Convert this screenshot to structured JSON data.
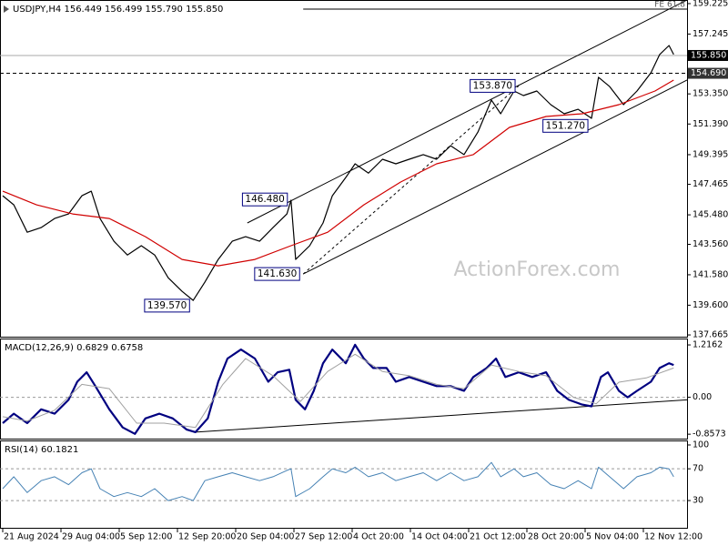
{
  "chart_data": [
    {
      "type": "line",
      "title": "USDJPY,H4 156.449 156.499 155.790 155.850",
      "watermark": "ActionForex.com",
      "xlim": [
        -0.047,
        11.75
      ],
      "ylim": [
        137.55,
        159.46
      ],
      "yticks": [
        159.225,
        157.245,
        {
          "value": 153.35,
          "label": "153.350"
        },
        {
          "value": 151.39,
          "label": "151.390"
        },
        149.395,
        147.465,
        {
          "value": 145.48,
          "label": "145.480"
        },
        {
          "value": 143.56,
          "label": "143.560"
        },
        {
          "value": 141.58,
          "label": "141.580"
        },
        {
          "value": 139.6,
          "label": "139.600"
        },
        137.665
      ],
      "levels": [
        {
          "value": 155.85,
          "label": "155.850",
          "color": "#000000",
          "style": "solid"
        },
        {
          "value": 154.69,
          "label": "154.690",
          "color": "#333333",
          "style": "dashed"
        }
      ],
      "x": [
        0,
        0.19,
        0.42,
        0.66,
        0.89,
        1.13,
        1.36,
        1.52,
        1.67,
        1.91,
        2.14,
        2.38,
        2.61,
        2.84,
        3.08,
        3.27,
        3.47,
        3.7,
        3.94,
        4.17,
        4.41,
        4.64,
        4.88,
        4.95,
        5.03,
        5.27,
        5.5,
        5.66,
        5.89,
        6.05,
        6.28,
        6.52,
        6.75,
        6.98,
        7.22,
        7.45,
        7.69,
        7.92,
        8.16,
        8.39,
        8.55,
        8.78,
        8.94,
        9.17,
        9.41,
        9.64,
        9.88,
        10.11,
        10.23,
        10.42,
        10.66,
        10.89,
        11.13,
        11.28,
        11.44,
        11.52
      ],
      "series": [
        {
          "color": "#000000",
          "values": [
            146.72,
            146.13,
            144.35,
            144.65,
            145.24,
            145.54,
            146.72,
            147.02,
            145.24,
            143.76,
            142.87,
            143.47,
            142.87,
            141.39,
            140.5,
            139.91,
            141.1,
            142.58,
            143.76,
            144.06,
            143.76,
            144.65,
            145.54,
            146.43,
            142.58,
            143.47,
            144.95,
            146.72,
            147.91,
            148.8,
            148.2,
            149.1,
            148.8,
            149.1,
            149.4,
            149.1,
            149.98,
            149.4,
            150.87,
            152.95,
            152.06,
            153.54,
            153.24,
            153.54,
            152.65,
            152.06,
            152.35,
            151.76,
            154.43,
            153.83,
            152.65,
            153.54,
            154.72,
            155.91,
            156.5,
            155.91
          ]
        },
        {
          "color": "#d00000",
          "x": [
            0,
            0.58,
            1.2,
            1.83,
            2.45,
            3.08,
            3.7,
            4.33,
            4.95,
            5.58,
            6.2,
            6.83,
            7.45,
            8.08,
            8.7,
            9.33,
            9.95,
            10.58,
            11.2,
            11.52
          ],
          "values": [
            147.02,
            146.13,
            145.54,
            145.24,
            144.06,
            142.58,
            142.16,
            142.58,
            143.47,
            144.35,
            146.13,
            147.61,
            148.8,
            149.4,
            151.17,
            151.88,
            152.06,
            152.65,
            153.54,
            154.25
          ]
        }
      ],
      "lines": [
        {
          "x": [
            4.2,
            11.75
          ],
          "values": [
            144.95,
            159.46
          ],
          "style": "solid"
        },
        {
          "x": [
            5.16,
            11.75
          ],
          "values": [
            141.63,
            154.25
          ],
          "style": "solid"
        },
        {
          "x": [
            5.16,
            8.86
          ],
          "values": [
            141.63,
            153.87
          ],
          "style": "dashed"
        },
        {
          "x": [
            5.16,
            11.75
          ],
          "values": [
            158.87,
            158.87
          ],
          "style": "solid",
          "label": "FE 61.8"
        }
      ],
      "annotations": [
        {
          "x": 3.27,
          "value": 139.57,
          "label": "139.570"
        },
        {
          "x": 5.16,
          "value": 141.63,
          "label": "141.630"
        },
        {
          "x": 4.95,
          "value": 146.48,
          "label": "146.480"
        },
        {
          "x": 8.86,
          "value": 153.87,
          "label": "153.870"
        },
        {
          "x": 10.11,
          "value": 151.27,
          "label": "151.270"
        }
      ]
    },
    {
      "type": "line",
      "title": "MACD(12,26,9) 0.6829 0.6758",
      "xlim": [
        -0.047,
        11.75
      ],
      "ylim": [
        -0.96,
        1.365
      ],
      "yticks": [
        1.2162,
        {
          "value": 0,
          "label": "0.00"
        },
        -0.8573
      ],
      "dashed_levels": [
        0
      ],
      "series": [
        {
          "color": "#000080",
          "width": 2.2,
          "x": [
            0,
            0.19,
            0.42,
            0.66,
            0.89,
            1.13,
            1.28,
            1.44,
            1.59,
            1.83,
            2.06,
            2.27,
            2.45,
            2.69,
            2.92,
            3.16,
            3.31,
            3.52,
            3.7,
            3.86,
            4.09,
            4.33,
            4.56,
            4.72,
            4.92,
            5.03,
            5.19,
            5.34,
            5.5,
            5.66,
            5.89,
            6.05,
            6.2,
            6.36,
            6.59,
            6.75,
            6.98,
            7.22,
            7.45,
            7.69,
            7.92,
            8.08,
            8.31,
            8.47,
            8.63,
            8.86,
            9.09,
            9.33,
            9.52,
            9.72,
            9.95,
            10.11,
            10.27,
            10.39,
            10.58,
            10.73,
            10.89,
            11.13,
            11.28,
            11.44,
            11.52
          ],
          "values": [
            -0.6,
            -0.38,
            -0.6,
            -0.28,
            -0.38,
            -0.06,
            0.36,
            0.58,
            0.26,
            -0.28,
            -0.7,
            -0.85,
            -0.49,
            -0.38,
            -0.49,
            -0.75,
            -0.81,
            -0.49,
            0.36,
            0.9,
            1.11,
            0.9,
            0.36,
            0.58,
            0.64,
            -0.06,
            -0.28,
            0.15,
            0.79,
            1.11,
            0.79,
            1.22,
            0.9,
            0.68,
            0.68,
            0.36,
            0.47,
            0.36,
            0.26,
            0.26,
            0.15,
            0.47,
            0.68,
            0.9,
            0.47,
            0.58,
            0.47,
            0.58,
            0.15,
            -0.06,
            -0.17,
            -0.21,
            0.47,
            0.58,
            0.15,
            0,
            0.15,
            0.36,
            0.68,
            0.79,
            0.75
          ]
        },
        {
          "color": "#a0a0a0",
          "width": 1,
          "x": [
            0,
            0.42,
            0.89,
            1.36,
            1.83,
            2.3,
            2.77,
            3.31,
            3.78,
            4.17,
            4.64,
            5.11,
            5.58,
            6.05,
            6.52,
            6.98,
            7.45,
            7.92,
            8.39,
            8.86,
            9.33,
            9.8,
            10.19,
            10.58,
            11.05,
            11.52
          ],
          "values": [
            -0.45,
            -0.55,
            -0.3,
            0.3,
            0.2,
            -0.6,
            -0.6,
            -0.7,
            0.3,
            0.9,
            0.5,
            -0.1,
            0.6,
            1.0,
            0.6,
            0.5,
            0.3,
            0.2,
            0.75,
            0.6,
            0.5,
            0.0,
            -0.15,
            0.35,
            0.45,
            0.68
          ]
        }
      ],
      "lines": [
        {
          "x": [
            3.31,
            11.75
          ],
          "values": [
            -0.81,
            -0.06
          ],
          "style": "solid"
        }
      ]
    },
    {
      "type": "line",
      "title": "RSI(14) 60.1821",
      "xlim": [
        -0.047,
        11.75
      ],
      "ylim": [
        -4.3,
        105.7
      ],
      "yticks": [
        100,
        70,
        30
      ],
      "dashed_levels": [
        70,
        30
      ],
      "xticks": [
        {
          "value": 0,
          "label": "21 Aug 2024"
        },
        {
          "value": 1,
          "label": "29 Aug 04:00"
        },
        {
          "value": 2,
          "label": "5 Sep 12:00"
        },
        {
          "value": 3,
          "label": "12 Sep 20:00"
        },
        {
          "value": 4,
          "label": "20 Sep 04:00"
        },
        {
          "value": 5,
          "label": "27 Sep 12:00"
        },
        {
          "value": 6,
          "label": "4 Oct 20:00"
        },
        {
          "value": 7,
          "label": "14 Oct 04:00"
        },
        {
          "value": 8,
          "label": "21 Oct 12:00"
        },
        {
          "value": 9,
          "label": "28 Oct 20:00"
        },
        {
          "value": 10,
          "label": "5 Nov 04:00"
        },
        {
          "value": 11,
          "label": "12 Nov 12:00"
        }
      ],
      "series": [
        {
          "color": "#4682b4",
          "width": 1,
          "x": [
            0,
            0.19,
            0.42,
            0.66,
            0.89,
            1.13,
            1.36,
            1.52,
            1.67,
            1.91,
            2.14,
            2.38,
            2.61,
            2.84,
            3.08,
            3.27,
            3.47,
            3.7,
            3.94,
            4.17,
            4.41,
            4.64,
            4.88,
            4.95,
            5.03,
            5.27,
            5.5,
            5.66,
            5.89,
            6.05,
            6.28,
            6.52,
            6.75,
            6.98,
            7.22,
            7.45,
            7.69,
            7.92,
            8.16,
            8.39,
            8.55,
            8.78,
            8.94,
            9.17,
            9.41,
            9.64,
            9.88,
            10.11,
            10.23,
            10.42,
            10.66,
            10.89,
            11.13,
            11.28,
            11.44,
            11.52
          ],
          "values": [
            45,
            60,
            40,
            55,
            60,
            50,
            65,
            70,
            45,
            35,
            40,
            35,
            45,
            30,
            35,
            30,
            55,
            60,
            65,
            60,
            55,
            60,
            68,
            70,
            35,
            45,
            60,
            70,
            65,
            72,
            60,
            65,
            55,
            60,
            65,
            55,
            65,
            55,
            60,
            78,
            60,
            70,
            60,
            65,
            50,
            45,
            55,
            45,
            72,
            60,
            45,
            60,
            65,
            72,
            70,
            60
          ]
        }
      ]
    }
  ]
}
